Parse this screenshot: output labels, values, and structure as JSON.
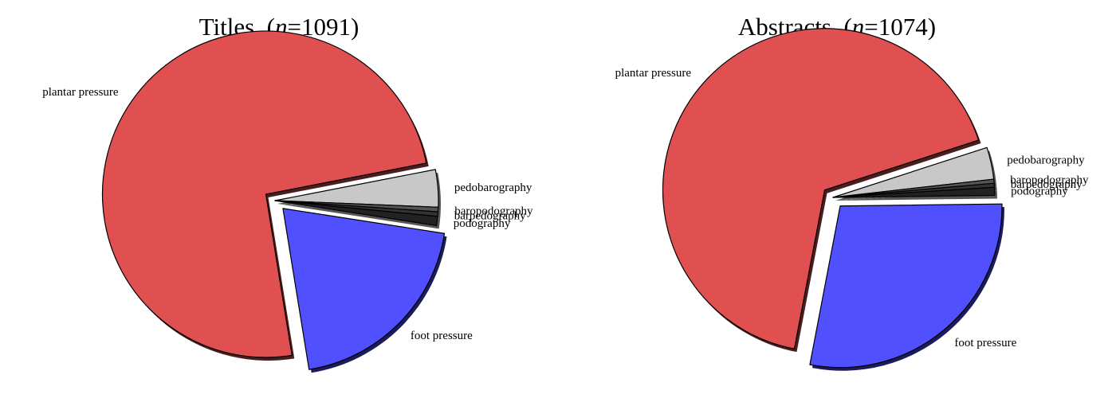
{
  "chart_data": [
    {
      "type": "pie",
      "title": "Titles",
      "n_label": "n",
      "n_value": "1091",
      "start_angle_deg": 11,
      "direction": "clockwise",
      "slices": [
        {
          "label": "pedobarography",
          "value": 3.7,
          "color": "#c8c8c8",
          "explode": false
        },
        {
          "label": "baropodography",
          "value": 0.45,
          "color": "#555555",
          "explode": false
        },
        {
          "label": "barpedography",
          "value": 0.45,
          "color": "#333333",
          "explode": false
        },
        {
          "label": "podography",
          "value": 0.9,
          "color": "#222222",
          "explode": false
        },
        {
          "label": "foot pressure",
          "value": 20.0,
          "color": "#5050ff",
          "explode": true
        },
        {
          "label": "plantar pressure",
          "value": 74.5,
          "color": "#e05050",
          "explode": true
        }
      ]
    },
    {
      "type": "pie",
      "title": "Abstracts",
      "n_label": "n",
      "n_value": "1074",
      "start_angle_deg": 18,
      "direction": "clockwise",
      "slices": [
        {
          "label": "pedobarography",
          "value": 3.2,
          "color": "#c8c8c8",
          "explode": false
        },
        {
          "label": "baropodography",
          "value": 0.4,
          "color": "#555555",
          "explode": false
        },
        {
          "label": "barpedography",
          "value": 0.4,
          "color": "#333333",
          "explode": false
        },
        {
          "label": "podography",
          "value": 0.8,
          "color": "#222222",
          "explode": false
        },
        {
          "label": "foot pressure",
          "value": 28.2,
          "color": "#5050ff",
          "explode": true
        },
        {
          "label": "plantar pressure",
          "value": 67.0,
          "color": "#e05050",
          "explode": true
        }
      ]
    }
  ]
}
